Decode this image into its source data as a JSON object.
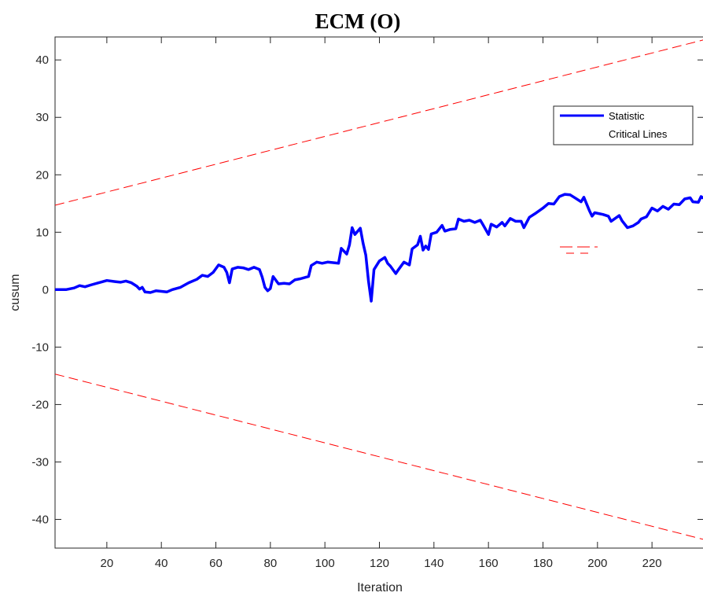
{
  "chart_data": {
    "type": "line",
    "title": "ECM (O)",
    "xlabel": "Iteration",
    "ylabel": "cusum",
    "xlim": [
      1,
      239
    ],
    "ylim": [
      -45,
      44
    ],
    "x_ticks": [
      20,
      40,
      60,
      80,
      100,
      120,
      140,
      160,
      180,
      200,
      220
    ],
    "y_ticks": [
      -40,
      -30,
      -20,
      -10,
      0,
      10,
      20,
      30,
      40
    ],
    "grid": false,
    "legend_position": "top-right",
    "series": [
      {
        "name": "Statistic",
        "color": "#0000ff",
        "style": "solid",
        "points": [
          [
            1,
            0
          ],
          [
            5,
            0
          ],
          [
            8,
            0.3
          ],
          [
            10,
            0.7
          ],
          [
            12,
            0.5
          ],
          [
            14,
            0.8
          ],
          [
            17,
            1.2
          ],
          [
            20,
            1.6
          ],
          [
            23,
            1.4
          ],
          [
            25,
            1.3
          ],
          [
            27,
            1.5
          ],
          [
            29,
            1.2
          ],
          [
            31,
            0.6
          ],
          [
            32,
            0.1
          ],
          [
            33,
            0.4
          ],
          [
            34,
            -0.4
          ],
          [
            36,
            -0.5
          ],
          [
            38,
            -0.2
          ],
          [
            40,
            -0.3
          ],
          [
            42,
            -0.4
          ],
          [
            44,
            0
          ],
          [
            47,
            0.4
          ],
          [
            50,
            1.2
          ],
          [
            53,
            1.8
          ],
          [
            55,
            2.5
          ],
          [
            57,
            2.3
          ],
          [
            59,
            3.0
          ],
          [
            61,
            4.3
          ],
          [
            63,
            3.9
          ],
          [
            64,
            3.0
          ],
          [
            65,
            1.2
          ],
          [
            66,
            3.6
          ],
          [
            68,
            3.9
          ],
          [
            70,
            3.8
          ],
          [
            72,
            3.5
          ],
          [
            74,
            3.9
          ],
          [
            76,
            3.5
          ],
          [
            77,
            2.2
          ],
          [
            78,
            0.4
          ],
          [
            79,
            -0.2
          ],
          [
            80,
            0.2
          ],
          [
            81,
            2.3
          ],
          [
            83,
            1.0
          ],
          [
            85,
            1.1
          ],
          [
            87,
            1.0
          ],
          [
            89,
            1.7
          ],
          [
            91,
            1.9
          ],
          [
            94,
            2.3
          ],
          [
            95,
            4.2
          ],
          [
            97,
            4.8
          ],
          [
            99,
            4.6
          ],
          [
            101,
            4.8
          ],
          [
            103,
            4.7
          ],
          [
            105,
            4.6
          ],
          [
            106,
            7.2
          ],
          [
            108,
            6.2
          ],
          [
            109,
            7.8
          ],
          [
            110,
            10.8
          ],
          [
            111,
            9.6
          ],
          [
            113,
            10.7
          ],
          [
            114,
            8.1
          ],
          [
            115,
            6.0
          ],
          [
            116,
            1.5
          ],
          [
            117,
            -2.0
          ],
          [
            118,
            3.5
          ],
          [
            120,
            5.0
          ],
          [
            122,
            5.6
          ],
          [
            123,
            4.6
          ],
          [
            124,
            4.1
          ],
          [
            126,
            2.8
          ],
          [
            127,
            3.5
          ],
          [
            129,
            4.8
          ],
          [
            131,
            4.3
          ],
          [
            132,
            7.1
          ],
          [
            134,
            7.8
          ],
          [
            135,
            9.3
          ],
          [
            136,
            6.9
          ],
          [
            137,
            7.6
          ],
          [
            138,
            7.0
          ],
          [
            139,
            9.7
          ],
          [
            141,
            10.0
          ],
          [
            143,
            11.2
          ],
          [
            144,
            10.2
          ],
          [
            146,
            10.5
          ],
          [
            148,
            10.6
          ],
          [
            149,
            12.3
          ],
          [
            151,
            11.9
          ],
          [
            153,
            12.1
          ],
          [
            155,
            11.7
          ],
          [
            157,
            12.1
          ],
          [
            158,
            11.3
          ],
          [
            160,
            9.6
          ],
          [
            161,
            11.4
          ],
          [
            163,
            10.9
          ],
          [
            165,
            11.7
          ],
          [
            166,
            11.1
          ],
          [
            168,
            12.4
          ],
          [
            170,
            11.9
          ],
          [
            172,
            11.9
          ],
          [
            173,
            10.8
          ],
          [
            175,
            12.6
          ],
          [
            177,
            13.2
          ],
          [
            180,
            14.2
          ],
          [
            182,
            15.0
          ],
          [
            184,
            14.9
          ],
          [
            186,
            16.2
          ],
          [
            188,
            16.6
          ],
          [
            190,
            16.5
          ],
          [
            192,
            15.9
          ],
          [
            194,
            15.3
          ],
          [
            195,
            16.1
          ],
          [
            197,
            13.8
          ],
          [
            198,
            12.8
          ],
          [
            199,
            13.4
          ],
          [
            202,
            13.1
          ],
          [
            204,
            12.8
          ],
          [
            205,
            11.9
          ],
          [
            208,
            12.9
          ],
          [
            209,
            12.0
          ],
          [
            211,
            10.8
          ],
          [
            213,
            11.1
          ],
          [
            215,
            11.7
          ],
          [
            216,
            12.3
          ],
          [
            218,
            12.7
          ],
          [
            220,
            14.2
          ],
          [
            222,
            13.7
          ],
          [
            224,
            14.5
          ],
          [
            226,
            14.0
          ],
          [
            228,
            14.9
          ],
          [
            230,
            14.8
          ],
          [
            232,
            15.8
          ],
          [
            234,
            16.0
          ],
          [
            235,
            15.3
          ],
          [
            237,
            15.2
          ],
          [
            238,
            16.2
          ],
          [
            239,
            15.9
          ]
        ]
      },
      {
        "name": "Critical Lines",
        "color": "#ff0000",
        "style": "dashed",
        "lines": [
          [
            [
              1,
              14.7
            ],
            [
              239,
              43.5
            ]
          ],
          [
            [
              1,
              -14.7
            ],
            [
              239,
              -43.5
            ]
          ]
        ]
      }
    ]
  }
}
